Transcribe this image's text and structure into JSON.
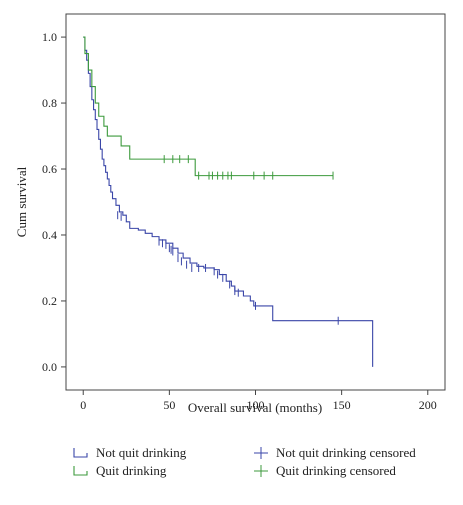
{
  "chart_data": {
    "type": "line",
    "title": "",
    "xlabel": "Overall survival (months)",
    "ylabel": "Cum survival",
    "xlim": [
      -10,
      210
    ],
    "ylim": [
      -0.07,
      1.07
    ],
    "xticks": [
      0,
      50,
      100,
      150,
      200
    ],
    "yticks": [
      0.0,
      0.2,
      0.4,
      0.6,
      0.8,
      1.0
    ],
    "xtick_labels": [
      "0",
      "50",
      "100",
      "150",
      "200"
    ],
    "ytick_labels": [
      "0.0",
      "0.2",
      "0.4",
      "0.6",
      "0.8",
      "1.0"
    ],
    "grid": false,
    "legend_position": "bottom",
    "series": [
      {
        "name": "Not quit drinking",
        "kind": "step",
        "color": "#3a46a8",
        "points": [
          [
            0,
            1.0
          ],
          [
            1,
            0.96
          ],
          [
            2,
            0.93
          ],
          [
            3,
            0.89
          ],
          [
            4,
            0.85
          ],
          [
            5,
            0.81
          ],
          [
            6,
            0.78
          ],
          [
            7,
            0.75
          ],
          [
            8,
            0.72
          ],
          [
            9,
            0.69
          ],
          [
            10,
            0.66
          ],
          [
            11,
            0.63
          ],
          [
            12,
            0.61
          ],
          [
            13,
            0.59
          ],
          [
            14,
            0.57
          ],
          [
            15,
            0.55
          ],
          [
            16,
            0.53
          ],
          [
            17,
            0.51
          ],
          [
            19,
            0.49
          ],
          [
            21,
            0.47
          ],
          [
            23,
            0.46
          ],
          [
            25,
            0.44
          ],
          [
            27,
            0.42
          ],
          [
            32,
            0.415
          ],
          [
            36,
            0.405
          ],
          [
            40,
            0.395
          ],
          [
            44,
            0.385
          ],
          [
            48,
            0.375
          ],
          [
            52,
            0.36
          ],
          [
            55,
            0.345
          ],
          [
            58,
            0.33
          ],
          [
            62,
            0.315
          ],
          [
            66,
            0.305
          ],
          [
            70,
            0.3
          ],
          [
            76,
            0.295
          ],
          [
            79,
            0.28
          ],
          [
            83,
            0.26
          ],
          [
            86,
            0.245
          ],
          [
            88,
            0.23
          ],
          [
            93,
            0.215
          ],
          [
            97,
            0.2
          ],
          [
            99,
            0.185
          ],
          [
            110,
            0.14
          ],
          [
            167,
            0.14
          ],
          [
            168,
            0.0
          ]
        ]
      },
      {
        "name": "Quit drinking",
        "kind": "step",
        "color": "#3c9a3c",
        "points": [
          [
            0,
            1.0
          ],
          [
            1,
            0.95
          ],
          [
            3,
            0.9
          ],
          [
            5,
            0.85
          ],
          [
            7,
            0.8
          ],
          [
            9,
            0.76
          ],
          [
            12,
            0.73
          ],
          [
            14,
            0.7
          ],
          [
            22,
            0.67
          ],
          [
            27,
            0.63
          ],
          [
            65,
            0.58
          ],
          [
            145,
            0.58
          ]
        ]
      },
      {
        "name": "Not quit drinking censored",
        "kind": "censored",
        "color": "#3a46a8",
        "points": [
          [
            20,
            0.46
          ],
          [
            22,
            0.455
          ],
          [
            44,
            0.38
          ],
          [
            46,
            0.375
          ],
          [
            48,
            0.37
          ],
          [
            50,
            0.36
          ],
          [
            51,
            0.355
          ],
          [
            52,
            0.35
          ],
          [
            55,
            0.33
          ],
          [
            57,
            0.32
          ],
          [
            60,
            0.31
          ],
          [
            63,
            0.3
          ],
          [
            67,
            0.3
          ],
          [
            71,
            0.3
          ],
          [
            76,
            0.29
          ],
          [
            78,
            0.28
          ],
          [
            81,
            0.27
          ],
          [
            85,
            0.25
          ],
          [
            88,
            0.23
          ],
          [
            90,
            0.225
          ],
          [
            100,
            0.185
          ],
          [
            148,
            0.14
          ]
        ]
      },
      {
        "name": "Quit drinking censored",
        "kind": "censored",
        "color": "#3c9a3c",
        "points": [
          [
            47,
            0.63
          ],
          [
            52,
            0.63
          ],
          [
            56,
            0.63
          ],
          [
            61,
            0.63
          ],
          [
            67,
            0.58
          ],
          [
            73,
            0.58
          ],
          [
            75,
            0.58
          ],
          [
            78,
            0.58
          ],
          [
            81,
            0.58
          ],
          [
            84,
            0.58
          ],
          [
            86,
            0.58
          ],
          [
            99,
            0.58
          ],
          [
            105,
            0.58
          ],
          [
            110,
            0.58
          ],
          [
            145,
            0.58
          ]
        ]
      }
    ]
  }
}
